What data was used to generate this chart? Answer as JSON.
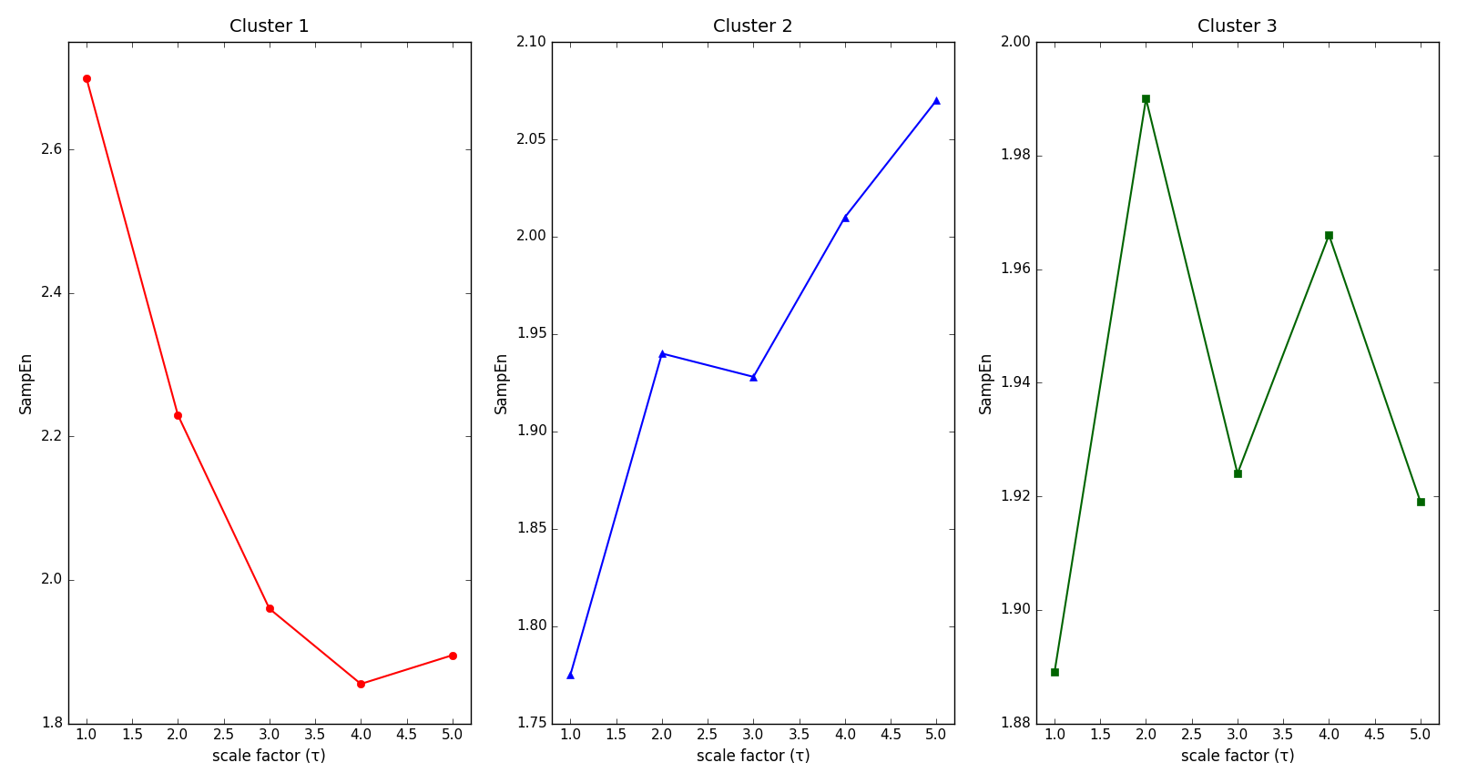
{
  "cluster1": {
    "title": "Cluster 1",
    "x": [
      1,
      2,
      3,
      4,
      5
    ],
    "y": [
      2.7,
      2.23,
      1.96,
      1.855,
      1.895
    ],
    "color": "red",
    "marker": "o",
    "ylim": [
      1.8,
      2.75
    ],
    "yticks": [
      1.8,
      2.0,
      2.2,
      2.4,
      2.6
    ],
    "ylabel": "SampEn"
  },
  "cluster2": {
    "title": "Cluster 2",
    "x": [
      1,
      2,
      3,
      4,
      5
    ],
    "y": [
      1.775,
      1.94,
      1.928,
      2.01,
      2.07
    ],
    "color": "blue",
    "marker": "^",
    "ylim": [
      1.75,
      2.1
    ],
    "yticks": [
      1.75,
      1.8,
      1.85,
      1.9,
      1.95,
      2.0,
      2.05,
      2.1
    ],
    "ylabel": "SampEn"
  },
  "cluster3": {
    "title": "Cluster 3",
    "x": [
      1,
      2,
      3,
      4,
      5
    ],
    "y": [
      1.889,
      1.99,
      1.924,
      1.966,
      1.919
    ],
    "color": "darkgreen",
    "marker": "s",
    "ylim": [
      1.88,
      2.0
    ],
    "yticks": [
      1.88,
      1.9,
      1.92,
      1.94,
      1.96,
      1.98,
      2.0
    ],
    "ylabel": "SampEn"
  },
  "xlabel": "scale factor (τ)",
  "xlim": [
    0.8,
    5.2
  ],
  "xticks": [
    1.0,
    1.5,
    2.0,
    2.5,
    3.0,
    3.5,
    4.0,
    4.5,
    5.0
  ],
  "background_color": "#ffffff",
  "title_fontsize": 14,
  "label_fontsize": 12,
  "tick_fontsize": 11
}
